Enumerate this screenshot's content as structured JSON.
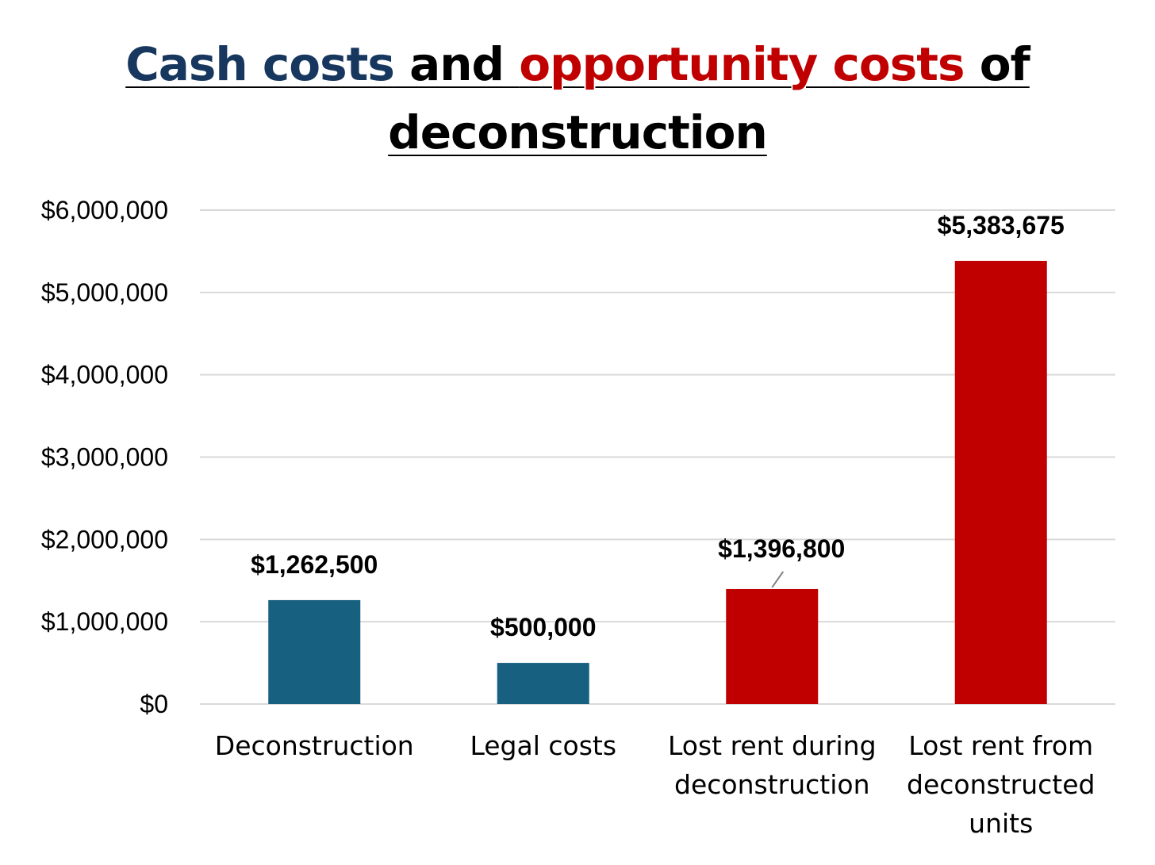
{
  "title": {
    "part1": "Cash costs",
    "part2": " and ",
    "part3": "opportunity costs",
    "part4": " of",
    "line2": "deconstruction",
    "color_cash": "#17375e",
    "color_opportunity": "#c00000"
  },
  "chart_data": {
    "type": "bar",
    "title": "Cash costs and opportunity costs of deconstruction",
    "categories": [
      [
        "Deconstruction"
      ],
      [
        "Legal costs"
      ],
      [
        "Lost rent during",
        "deconstruction"
      ],
      [
        "Lost rent from",
        "deconstructed",
        "units"
      ]
    ],
    "values": [
      1262500,
      500000,
      1396800,
      5383675
    ],
    "data_labels": [
      "$1,262,500",
      "$500,000",
      "$1,396,800",
      "$5,383,675"
    ],
    "bar_colors": [
      "#17607f",
      "#17607f",
      "#c00000",
      "#c00000"
    ],
    "ylim": [
      0,
      6000000
    ],
    "yticks": [
      0,
      1000000,
      2000000,
      3000000,
      4000000,
      5000000,
      6000000
    ],
    "ytick_labels": [
      "$0",
      "$1,000,000",
      "$2,000,000",
      "$3,000,000",
      "$4,000,000",
      "$5,000,000",
      "$6,000,000"
    ],
    "grid": true,
    "grid_color": "#d9d9d9",
    "xlabel": "",
    "ylabel": ""
  }
}
